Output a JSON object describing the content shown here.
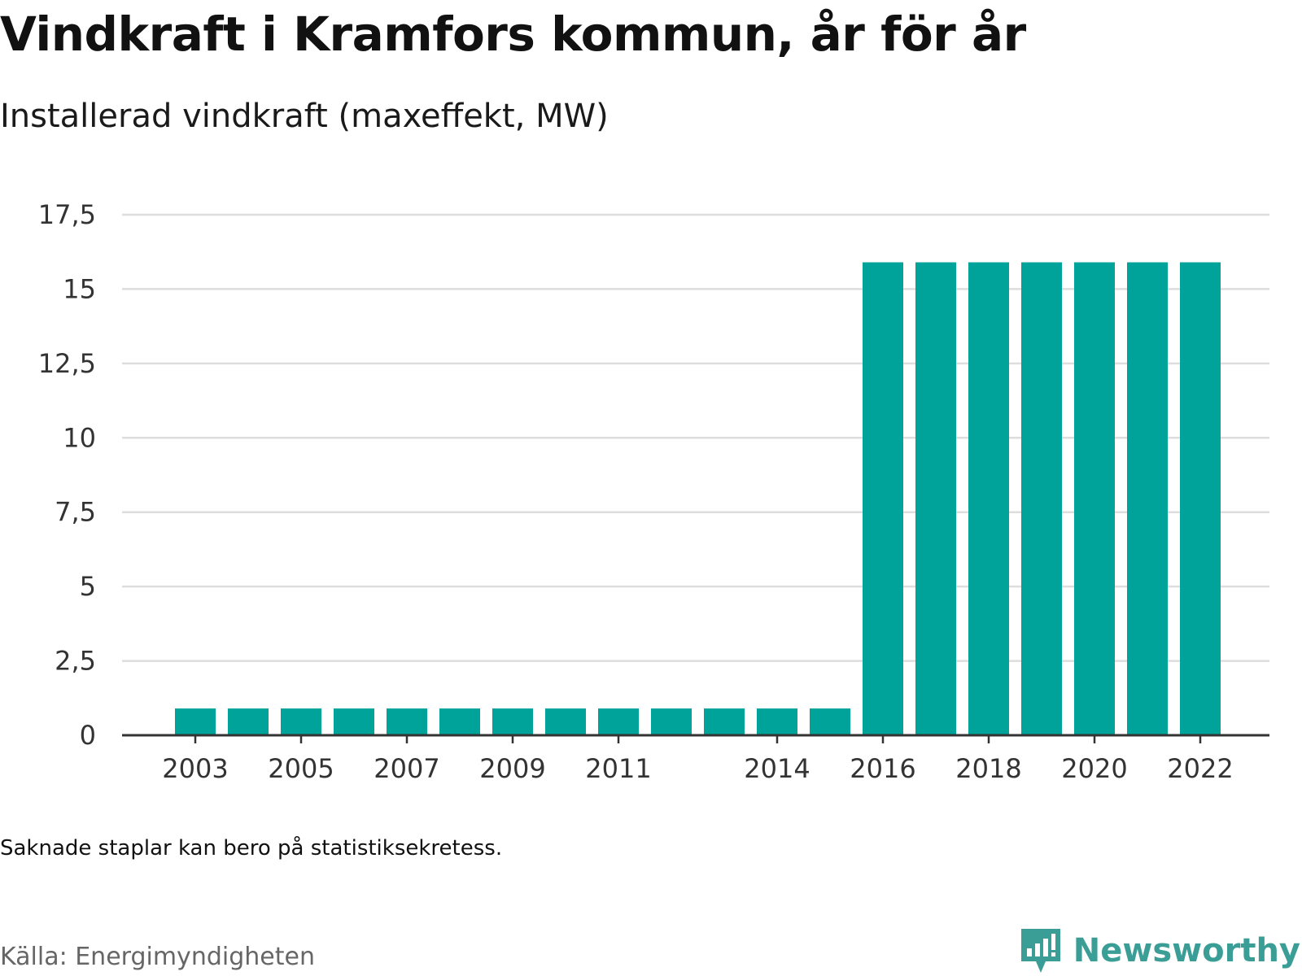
{
  "title": "Vindkraft i Kramfors kommun, år för år",
  "subtitle": "Installerad vindkraft (maxeffekt, MW)",
  "note": "Saknade staplar kan bero på statistiksekretess.",
  "source": "Källa: Energimyndigheten",
  "brand": {
    "name": "Newsworthy",
    "icon": "newsworthy-logo-icon",
    "color": "#3a9e96"
  },
  "chart_data": {
    "type": "bar",
    "categories": [
      "2003",
      "2004",
      "2005",
      "2006",
      "2007",
      "2008",
      "2009",
      "2010",
      "2011",
      "2012",
      "2013",
      "2014",
      "2015",
      "2016",
      "2017",
      "2018",
      "2019",
      "2020",
      "2021",
      "2022"
    ],
    "values": [
      0.9,
      0.9,
      0.9,
      0.9,
      0.9,
      0.9,
      0.9,
      0.9,
      0.9,
      0.9,
      0.9,
      0.9,
      0.9,
      15.9,
      15.9,
      15.9,
      15.9,
      15.9,
      15.9,
      15.9
    ],
    "x_tick_labels": [
      "2003",
      "2005",
      "2007",
      "2009",
      "2011",
      "2014",
      "2016",
      "2018",
      "2020",
      "2022"
    ],
    "y_ticks": [
      0,
      2.5,
      5,
      7.5,
      10,
      12.5,
      15,
      17.5
    ],
    "y_tick_labels": [
      "0",
      "2,5",
      "5",
      "7,5",
      "10",
      "12,5",
      "15",
      "17,5"
    ],
    "ylim": [
      0,
      17.5
    ],
    "grid": true,
    "bar_color": "#00a39a"
  }
}
